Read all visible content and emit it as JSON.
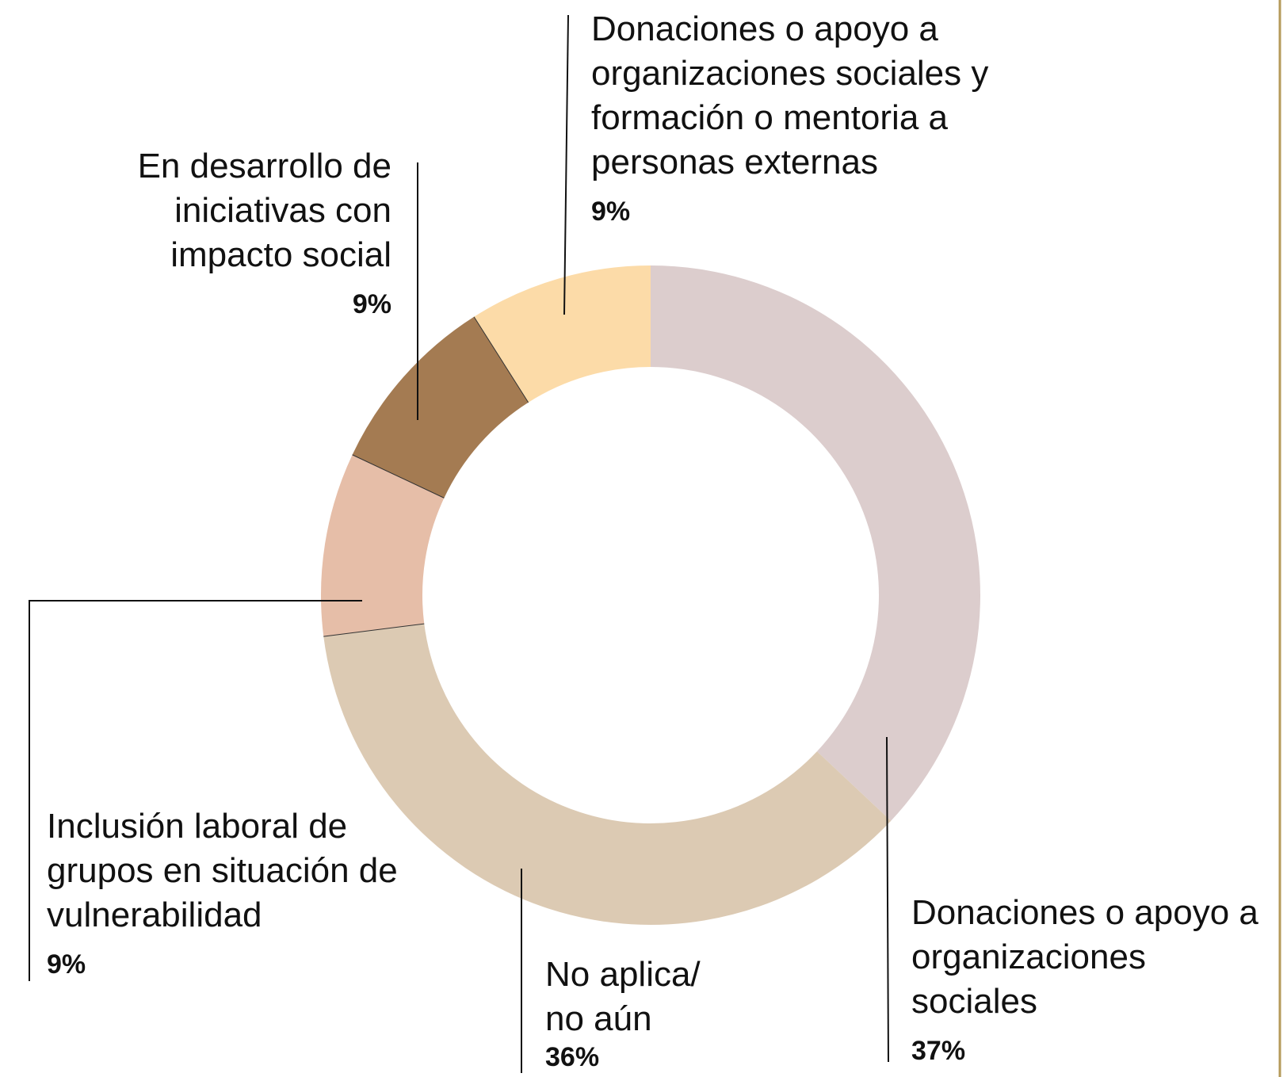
{
  "chart_data": {
    "type": "donut",
    "categories": [
      "Donaciones o apoyo a organizaciones sociales",
      "No aplica/ no aún",
      "Inclusión laboral de grupos en situación de vulnerabilidad",
      "En desarrollo de iniciativas con impacto social",
      "Donaciones o apoyo a organizaciones sociales y formación o mentoria a personas externas"
    ],
    "values": [
      37,
      36,
      9,
      9,
      9
    ],
    "value_labels": [
      "37%",
      "36%",
      "9%",
      "9%",
      "9%"
    ],
    "colors": [
      "#dccdcd",
      "#dccab3",
      "#e6bea8",
      "#a47b52",
      "#fcdba8"
    ]
  }
}
